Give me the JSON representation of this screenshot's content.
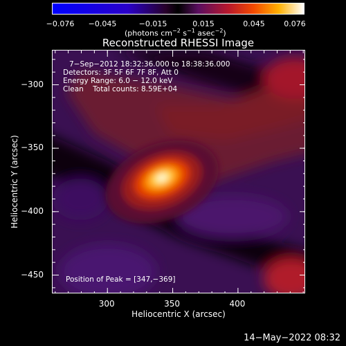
{
  "colorbar": {
    "ticks": [
      "−0.076",
      "−0.045",
      "−0.015",
      "0.015",
      "0.045",
      "0.076"
    ],
    "unit_main": "(photons cm",
    "unit_exp1": "−2",
    "unit_mid": " s",
    "unit_exp2": "−1",
    "unit_end": " asec",
    "unit_exp3": "−2",
    "unit_close": ")"
  },
  "chart_data": {
    "type": "heatmap",
    "title": "Reconstructed RHESSI Image",
    "xlabel": "Heliocentric X (arcsec)",
    "ylabel": "Heliocentric Y (arcsec)",
    "x_ticks": [
      "300",
      "350",
      "400"
    ],
    "y_ticks": [
      "−300",
      "−350",
      "−400",
      "−450"
    ],
    "xlim": [
      258,
      452
    ],
    "ylim": [
      -465,
      -273
    ],
    "color_range": [
      -0.076,
      0.076
    ],
    "peak": [
      347,
      -369
    ],
    "annotations": {
      "time": "7−Sep−2012 18:32:36.000 to 18:38:36.000",
      "detectors": "Detectors: 3F 5F 6F 7F 8F, Att 0",
      "energy": "Energy Range: 6.0 − 12.0 keV",
      "clean": "Clean    Total counts: 8.59E+04",
      "peak_text": "Position of Peak = [347,−369]"
    }
  },
  "footer": {
    "timestamp": "14−May−2022 08:32"
  }
}
